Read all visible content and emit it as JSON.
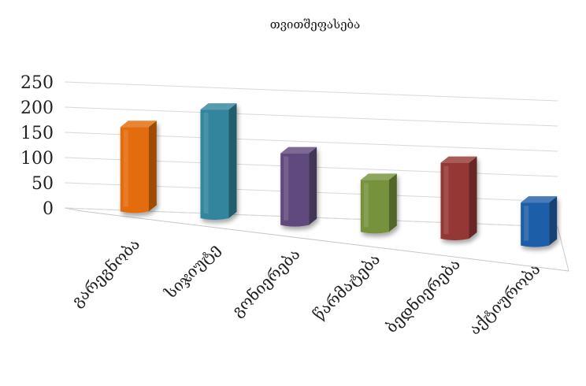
{
  "chart_data": {
    "type": "bar",
    "title": "თვითშეფასება",
    "xlabel": "",
    "ylabel": "",
    "categories": [
      "გარეგნობა",
      "სიჯიუტე",
      "გონიერება",
      "წარმატება",
      "ბედნიერება",
      "აქტიურობა"
    ],
    "values": [
      150,
      195,
      130,
      95,
      140,
      80
    ],
    "colors": [
      "#e36c09",
      "#31859c",
      "#604a7b",
      "#76923c",
      "#953735",
      "#1f5fa8"
    ],
    "ylim": [
      0,
      250
    ],
    "yticks": [
      "250",
      "200",
      "150",
      "100",
      "50",
      "0"
    ],
    "grid": true,
    "legend": "none",
    "style": "3d-column"
  }
}
